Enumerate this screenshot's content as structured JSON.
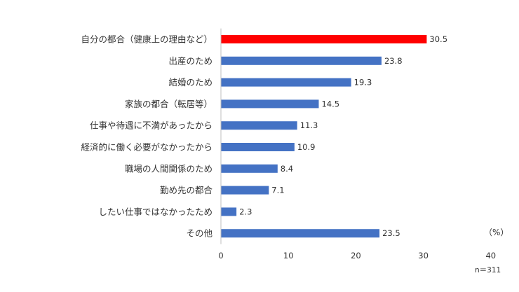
{
  "chart_data": {
    "type": "bar",
    "orientation": "horizontal",
    "categories": [
      "自分の都合（健康上の理由など）",
      "出産のため",
      "結婚のため",
      "家族の都合（転居等）",
      "仕事や待遇に不満があったから",
      "経済的に働く必要がなかったから",
      "職場の人間関係のため",
      "勤め先の都合",
      "したい仕事ではなかったため",
      "その他"
    ],
    "values": [
      30.5,
      23.8,
      19.3,
      14.5,
      11.3,
      10.9,
      8.4,
      7.1,
      2.3,
      23.5
    ],
    "value_labels": [
      "30.5",
      "23.8",
      "19.3",
      "14.5",
      "11.3",
      "10.9",
      "8.4",
      "7.1",
      "2.3",
      "23.5"
    ],
    "highlight_index": 0,
    "colors": {
      "bar": "#4472c4",
      "highlight": "#ff0000",
      "axis": "#bfbfbf"
    },
    "xlim": [
      0,
      40
    ],
    "xticks": [
      "0",
      "10",
      "20",
      "30",
      "40"
    ],
    "grid": false,
    "unit_label": "（%）",
    "sample_note": "n＝311"
  }
}
